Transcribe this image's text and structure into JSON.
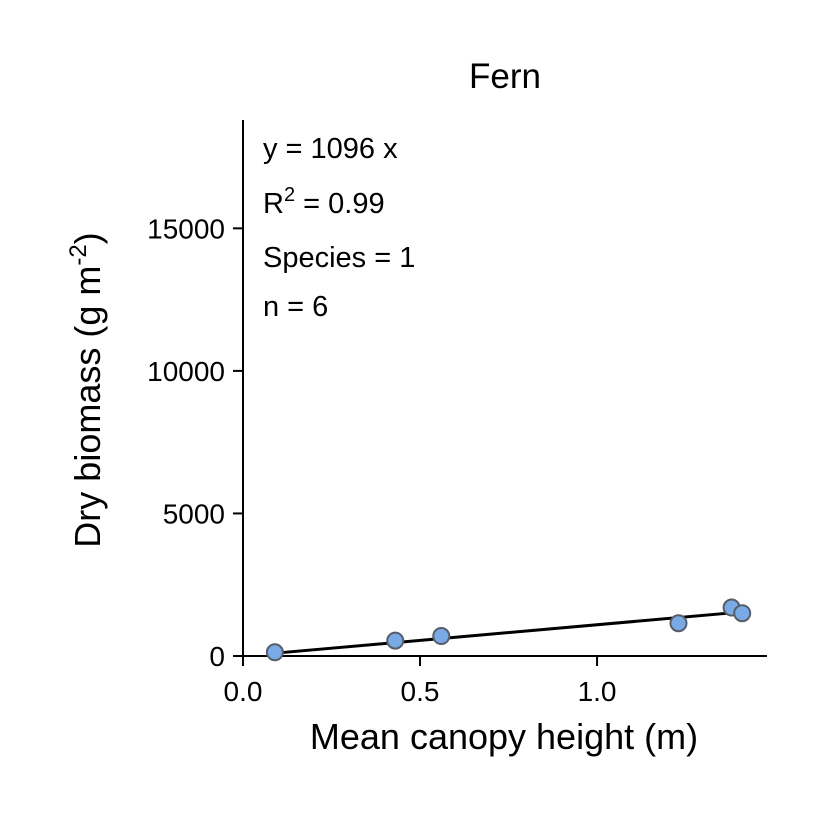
{
  "chart_data": {
    "type": "scatter",
    "title": "Fern",
    "xlabel": "Mean canopy height (m)",
    "ylabel_main": "Dry biomass (g m",
    "ylabel_sup": "-2",
    "ylabel_close": ")",
    "xlim": [
      0,
      1.48
    ],
    "ylim": [
      0,
      18800
    ],
    "xticks": [
      0.0,
      0.5,
      1.0
    ],
    "xtick_labels": [
      "0.0",
      "0.5",
      "1.0"
    ],
    "yticks": [
      0,
      5000,
      10000,
      15000
    ],
    "ytick_labels": [
      "0",
      "5000",
      "10000",
      "15000"
    ],
    "series": [
      {
        "x": [
          0.09,
          0.43,
          0.56,
          1.23,
          1.38,
          1.41
        ],
        "y": [
          130,
          540,
          700,
          1150,
          1700,
          1500
        ],
        "color": "#7aaae6"
      }
    ],
    "fit": {
      "slope": 1096,
      "x_range": [
        0.09,
        1.41
      ],
      "color": "#000000"
    },
    "annotations": {
      "equation": "y = 1096 x",
      "r2_prefix": "R",
      "r2_sup": "2",
      "r2_value": " = 0.99",
      "species": "Species = 1",
      "n": "n = 6"
    },
    "grid": false,
    "legend": "none"
  }
}
